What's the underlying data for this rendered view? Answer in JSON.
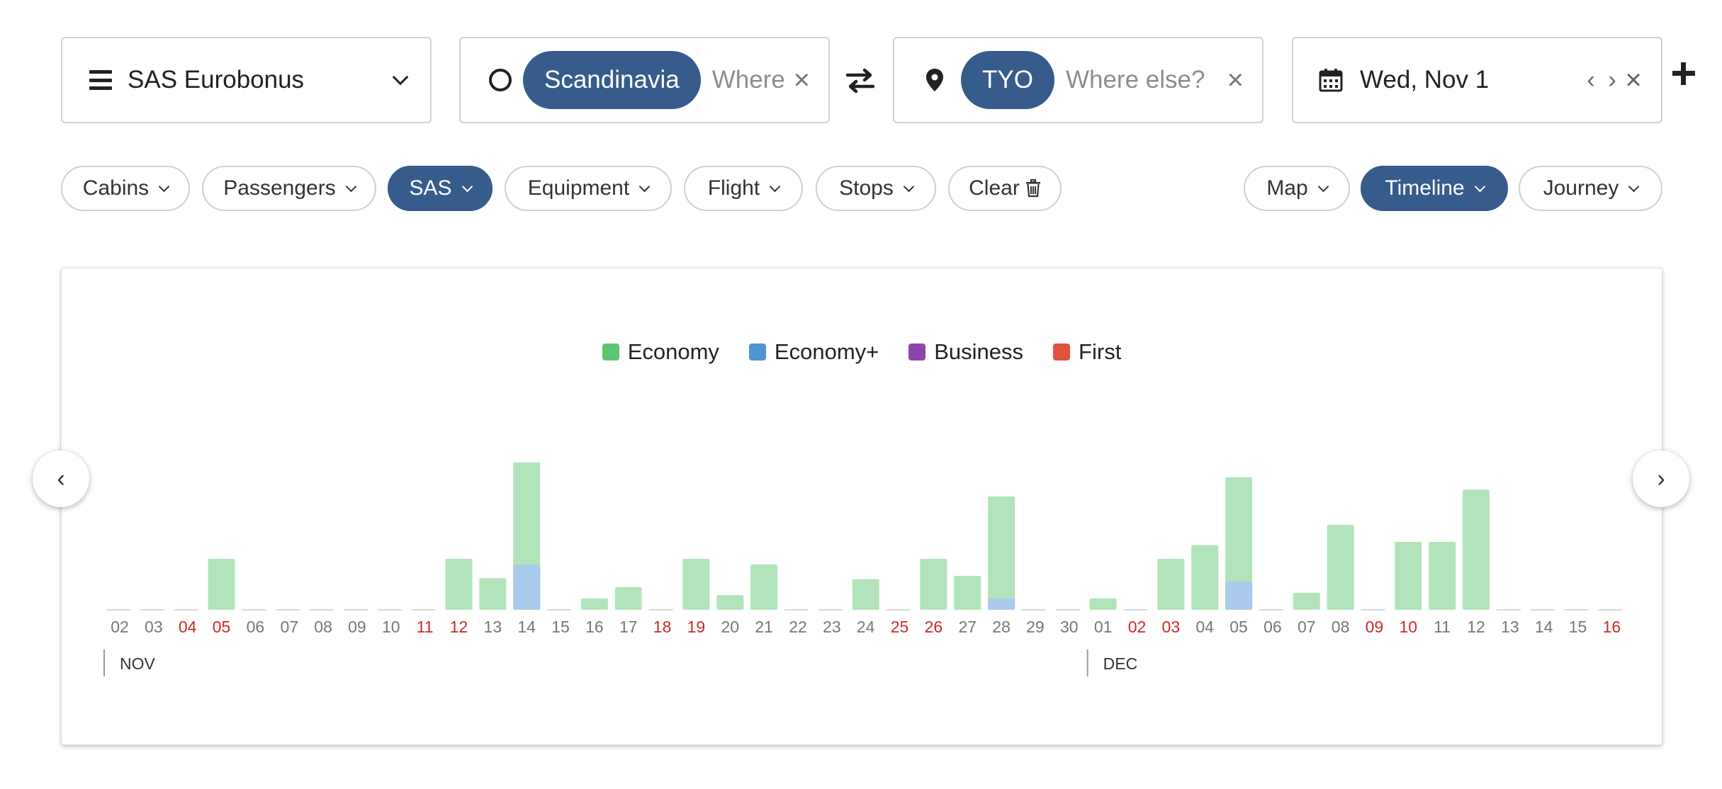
{
  "search": {
    "program": "SAS Eurobonus",
    "origin_chip": "Scandinavia",
    "origin_placeholder": "Where",
    "dest_chip": "TYO",
    "dest_placeholder": "Where else?",
    "date": "Wed, Nov 1"
  },
  "filters": {
    "cabins": "Cabins",
    "passengers": "Passengers",
    "airline": "SAS",
    "equipment": "Equipment",
    "flight": "Flight",
    "stops": "Stops",
    "clear": "Clear"
  },
  "views": {
    "map": "Map",
    "timeline": "Timeline",
    "journey": "Journey"
  },
  "icons": {
    "menu": "menu-icon",
    "origin": "circle-icon",
    "swap": "swap-icon",
    "destination": "pin-icon",
    "calendar": "calendar-icon",
    "add": "plus-icon",
    "clear": "trash-icon"
  },
  "colors": {
    "accent": "#365c8b",
    "economy": "#b2e4bb",
    "economy_plus": "#aacbec",
    "legend_economy": "#5fc56e",
    "legend_economy_plus": "#4f94d4",
    "legend_business": "#8e44ad",
    "legend_first": "#e0533d",
    "weekend_text": "#cc2929",
    "weekday_text": "#777777"
  },
  "chart_data": {
    "type": "bar",
    "stacked": true,
    "legend": [
      {
        "name": "Economy",
        "color": "#5fc56e"
      },
      {
        "name": "Economy+",
        "color": "#4f94d4"
      },
      {
        "name": "Business",
        "color": "#8e44ad"
      },
      {
        "name": "First",
        "color": "#e0533d"
      }
    ],
    "months": [
      {
        "label": "NOV",
        "start_index": 0
      },
      {
        "label": "DEC",
        "start_index": 29
      }
    ],
    "days": [
      {
        "d": "02",
        "weekend": false,
        "economy": 0,
        "economy_plus": 0
      },
      {
        "d": "03",
        "weekend": false,
        "economy": 0,
        "economy_plus": 0
      },
      {
        "d": "04",
        "weekend": true,
        "economy": 0,
        "economy_plus": 0
      },
      {
        "d": "05",
        "weekend": true,
        "economy": 9,
        "economy_plus": 0
      },
      {
        "d": "06",
        "weekend": false,
        "economy": 0,
        "economy_plus": 0
      },
      {
        "d": "07",
        "weekend": false,
        "economy": 0,
        "economy_plus": 0
      },
      {
        "d": "08",
        "weekend": false,
        "economy": 0,
        "economy_plus": 0
      },
      {
        "d": "09",
        "weekend": false,
        "economy": 0,
        "economy_plus": 0
      },
      {
        "d": "10",
        "weekend": false,
        "economy": 0,
        "economy_plus": 0
      },
      {
        "d": "11",
        "weekend": true,
        "economy": 0,
        "economy_plus": 0
      },
      {
        "d": "12",
        "weekend": true,
        "economy": 9,
        "economy_plus": 0
      },
      {
        "d": "13",
        "weekend": false,
        "economy": 5.6,
        "economy_plus": 0
      },
      {
        "d": "14",
        "weekend": false,
        "economy": 18,
        "economy_plus": 8
      },
      {
        "d": "15",
        "weekend": false,
        "economy": 0,
        "economy_plus": 0
      },
      {
        "d": "16",
        "weekend": false,
        "economy": 2,
        "economy_plus": 0
      },
      {
        "d": "17",
        "weekend": false,
        "economy": 4,
        "economy_plus": 0
      },
      {
        "d": "18",
        "weekend": true,
        "economy": 0,
        "economy_plus": 0
      },
      {
        "d": "19",
        "weekend": true,
        "economy": 9,
        "economy_plus": 0
      },
      {
        "d": "20",
        "weekend": false,
        "economy": 2.6,
        "economy_plus": 0
      },
      {
        "d": "21",
        "weekend": false,
        "economy": 8,
        "economy_plus": 0
      },
      {
        "d": "22",
        "weekend": false,
        "economy": 0,
        "economy_plus": 0
      },
      {
        "d": "23",
        "weekend": false,
        "economy": 0,
        "economy_plus": 0
      },
      {
        "d": "24",
        "weekend": false,
        "economy": 5.4,
        "economy_plus": 0
      },
      {
        "d": "25",
        "weekend": true,
        "economy": 0,
        "economy_plus": 0
      },
      {
        "d": "26",
        "weekend": true,
        "economy": 9,
        "economy_plus": 0
      },
      {
        "d": "27",
        "weekend": false,
        "economy": 6,
        "economy_plus": 0
      },
      {
        "d": "28",
        "weekend": false,
        "economy": 18,
        "economy_plus": 2
      },
      {
        "d": "29",
        "weekend": false,
        "economy": 0,
        "economy_plus": 0
      },
      {
        "d": "30",
        "weekend": false,
        "economy": 0,
        "economy_plus": 0
      },
      {
        "d": "01",
        "weekend": false,
        "economy": 2,
        "economy_plus": 0
      },
      {
        "d": "02",
        "weekend": true,
        "economy": 0,
        "economy_plus": 0
      },
      {
        "d": "03",
        "weekend": true,
        "economy": 9,
        "economy_plus": 0
      },
      {
        "d": "04",
        "weekend": false,
        "economy": 11.4,
        "economy_plus": 0
      },
      {
        "d": "05",
        "weekend": false,
        "economy": 18.4,
        "economy_plus": 5
      },
      {
        "d": "06",
        "weekend": false,
        "economy": 0,
        "economy_plus": 0
      },
      {
        "d": "07",
        "weekend": false,
        "economy": 3,
        "economy_plus": 0
      },
      {
        "d": "08",
        "weekend": false,
        "economy": 15,
        "economy_plus": 0
      },
      {
        "d": "09",
        "weekend": true,
        "economy": 0,
        "economy_plus": 0
      },
      {
        "d": "10",
        "weekend": true,
        "economy": 12,
        "economy_plus": 0
      },
      {
        "d": "11",
        "weekend": false,
        "economy": 12,
        "economy_plus": 0
      },
      {
        "d": "12",
        "weekend": false,
        "economy": 21.2,
        "economy_plus": 0
      },
      {
        "d": "13",
        "weekend": false,
        "economy": 0,
        "economy_plus": 0
      },
      {
        "d": "14",
        "weekend": false,
        "economy": 0,
        "economy_plus": 0
      },
      {
        "d": "15",
        "weekend": false,
        "economy": 0,
        "economy_plus": 0
      },
      {
        "d": "16",
        "weekend": true,
        "economy": 0,
        "economy_plus": 0
      }
    ],
    "ylim": [
      0,
      26
    ]
  }
}
